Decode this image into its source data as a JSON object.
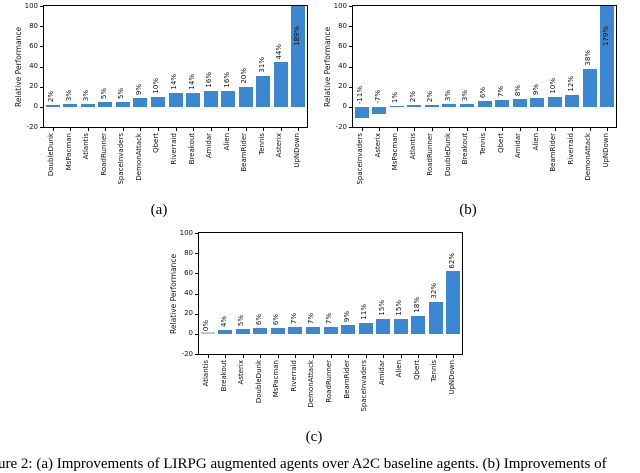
{
  "caption": {
    "text": "Figure 2: (a) Improvements of LIRPG augmented agents over A2C baseline agents. (b) Improvements of"
  },
  "style": {
    "bar_color": "#3c87d2",
    "zero_bar_color": "#a9cdee",
    "axis_color": "#000000",
    "text_color": "#111111"
  },
  "chart_data": [
    {
      "type": "bar",
      "label": "(a)",
      "ylabel": "Relative Performance",
      "ylim": [
        -20,
        100
      ],
      "yticks": [
        100,
        80,
        60,
        40,
        20,
        0,
        -20
      ],
      "grid": false,
      "legend": "none",
      "categories": [
        "DoubleDunk",
        "MsPacman",
        "Atlantis",
        "RoadRunner",
        "SpaceInvaders",
        "DemonAttack",
        "Qbert",
        "Riverraid",
        "Breakout",
        "Amidar",
        "Alien",
        "BeamRider",
        "Tennis",
        "Asterix",
        "UpNDown"
      ],
      "values": [
        2,
        3,
        3,
        5,
        5,
        9,
        10,
        14,
        14,
        16,
        16,
        20,
        31,
        44,
        189
      ],
      "value_labels": [
        "2%",
        "3%",
        "3%",
        "5%",
        "5%",
        "9%",
        "10%",
        "14%",
        "14%",
        "16%",
        "16%",
        "20%",
        "31%",
        "44%",
        "189%"
      ]
    },
    {
      "type": "bar",
      "label": "(b)",
      "ylabel": "Relative Performance",
      "ylim": [
        -20,
        100
      ],
      "yticks": [
        100,
        80,
        60,
        40,
        20,
        0,
        -20
      ],
      "grid": false,
      "legend": "none",
      "categories": [
        "SpaceInvaders",
        "Asterix",
        "MsPacman",
        "Atlantis",
        "RoadRunner",
        "DoubleDunk",
        "Breakout",
        "Tennis",
        "Qbert",
        "Amidar",
        "Alien",
        "BeamRider",
        "Riverraid",
        "DemonAttack",
        "UpNDown"
      ],
      "values": [
        -11,
        -7,
        1,
        2,
        2,
        3,
        3,
        6,
        7,
        8,
        9,
        10,
        12,
        38,
        179
      ],
      "value_labels": [
        "-11%",
        "-7%",
        "1%",
        "2%",
        "2%",
        "3%",
        "3%",
        "6%",
        "7%",
        "8%",
        "9%",
        "10%",
        "12%",
        "38%",
        "179%"
      ]
    },
    {
      "type": "bar",
      "label": "(c)",
      "ylabel": "Relative Performance",
      "ylim": [
        -20,
        100
      ],
      "yticks": [
        100,
        80,
        60,
        40,
        20,
        0,
        -20
      ],
      "grid": false,
      "legend": "none",
      "categories": [
        "Atlantis",
        "Breakout",
        "Asterix",
        "DoubleDunk",
        "MsPacman",
        "Riverraid",
        "DemonAttack",
        "RoadRunner",
        "BeamRider",
        "SpaceInvaders",
        "Amidar",
        "Alien",
        "Qbert",
        "Tennis",
        "UpNDown"
      ],
      "values": [
        0,
        4,
        5,
        6,
        6,
        7,
        7,
        7,
        9,
        11,
        15,
        15,
        18,
        32,
        62
      ],
      "value_labels": [
        "0%",
        "4%",
        "5%",
        "6%",
        "6%",
        "7%",
        "7%",
        "7%",
        "9%",
        "11%",
        "15%",
        "15%",
        "18%",
        "32%",
        "62%"
      ]
    }
  ]
}
